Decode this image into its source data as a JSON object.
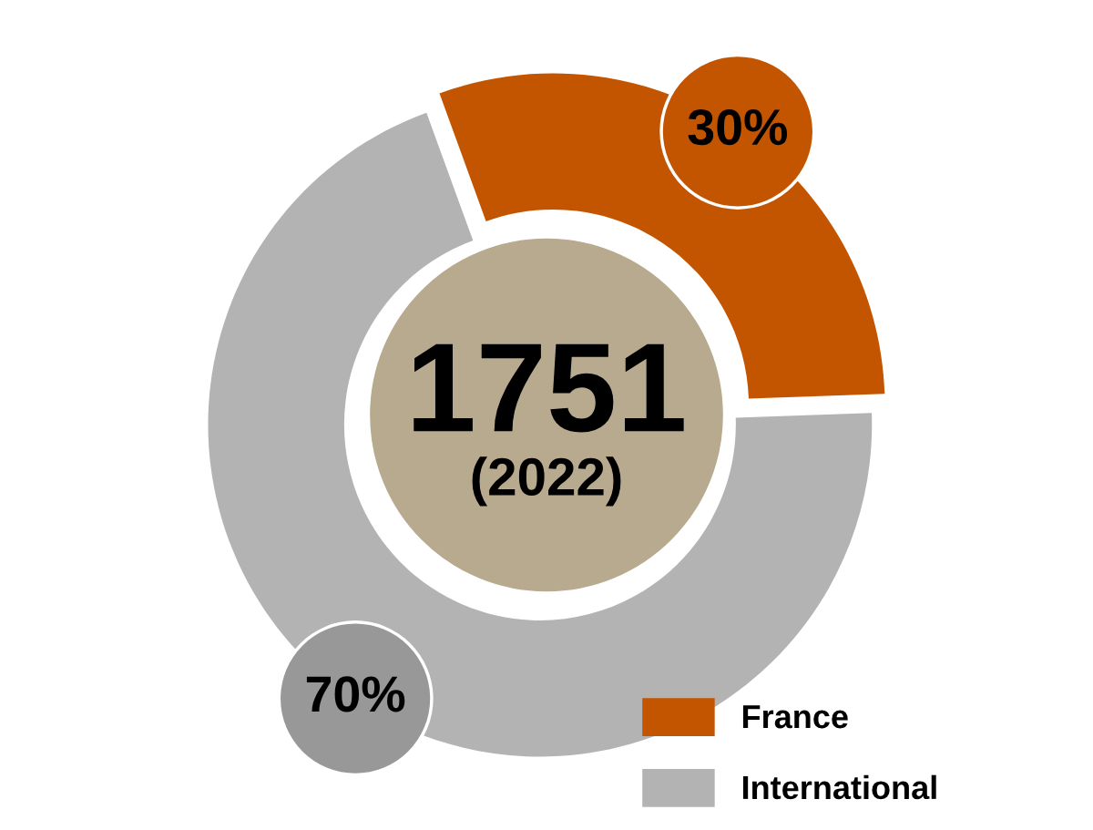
{
  "chart_data": {
    "type": "donut",
    "categories": [
      "France",
      "International"
    ],
    "values": [
      30,
      70
    ],
    "colors": [
      "#c45500",
      "#b3b3b3"
    ],
    "value_labels": [
      "30%",
      "70%"
    ],
    "annotations": [
      "1751",
      "(2022)"
    ],
    "legend": "bottom right"
  }
}
